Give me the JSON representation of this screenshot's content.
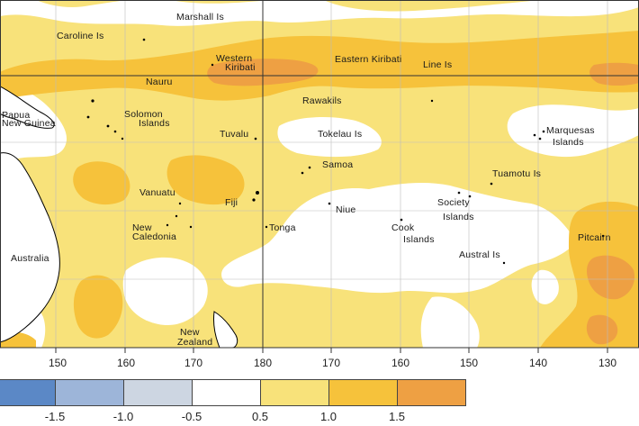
{
  "places": {
    "marshall_is": "Marshall Is",
    "caroline_is": "Caroline Is",
    "western_kiribati_1": "Western",
    "western_kiribati_2": "Kiribati",
    "eastern_kiribati": "Eastern Kiribati",
    "line_is": "Line Is",
    "nauru": "Nauru",
    "phoenix_is": "Rawakils",
    "papua_new_guinea_1": "Papua",
    "papua_new_guinea_2": "New Guinea",
    "solomon_islands_1": "Solomon",
    "solomon_islands_2": "Islands",
    "tuvalu": "Tuvalu",
    "tokelau_is": "Tokelau Is",
    "marquesas_1": "Marquesas",
    "marquesas_2": "Islands",
    "samoa": "Samoa",
    "tuamotu_is": "Tuamotu Is",
    "vanuatu": "Vanuatu",
    "fiji": "Fiji",
    "niue": "Niue",
    "society_1": "Society",
    "society_2": "Islands",
    "new_caledonia_1": "New",
    "new_caledonia_2": "Caledonia",
    "tonga": "Tonga",
    "cook_1": "Cook",
    "cook_2": "Islands",
    "pitcairn": "Pitcairn",
    "australia": "Australia",
    "austral_is": "Austral Is",
    "new_zealand_1": "New",
    "new_zealand_2": "Zealand"
  },
  "longitude_ticks": [
    "150",
    "160",
    "170",
    "180",
    "170",
    "160",
    "150",
    "140",
    "130"
  ],
  "legend": {
    "labels": [
      "-1.5",
      "-1.0",
      "-0.5",
      "0.5",
      "1.0",
      "1.5"
    ],
    "colors": [
      "#5b88c6",
      "#9db5d9",
      "#cdd6e2",
      "#ffffff",
      "#f8e27a",
      "#f6c23b",
      "#eea043"
    ]
  },
  "colors": {
    "land_sea_background": "#fbe89a",
    "anomaly_light": "#f8e27a",
    "anomaly_medium": "#f6c23b",
    "anomaly_strong": "#eea043",
    "near_zero": "#ffffff",
    "grid": "#cccccc",
    "coast": "#000000"
  }
}
